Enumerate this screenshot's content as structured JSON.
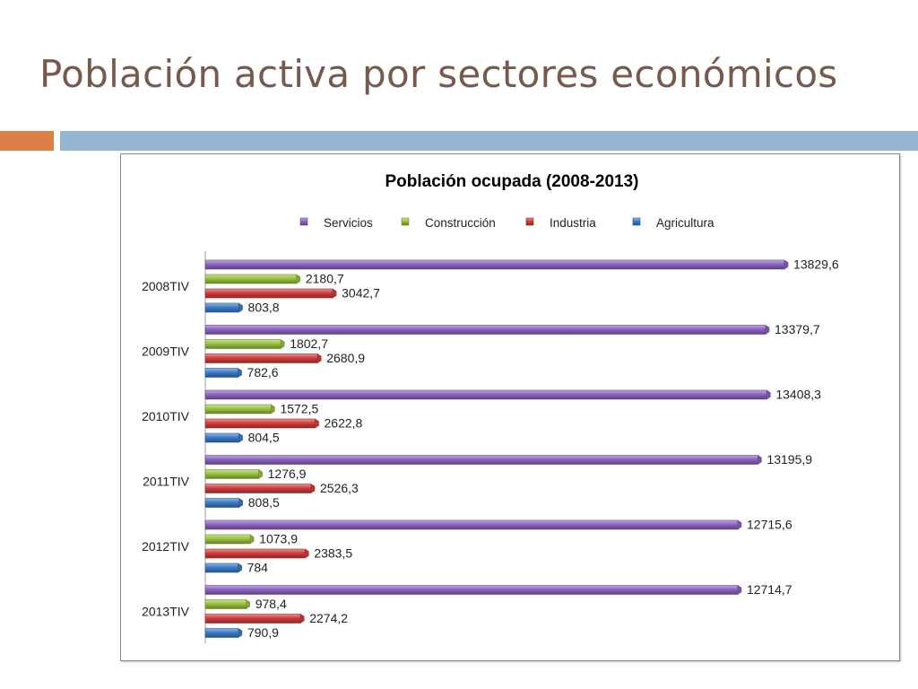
{
  "slide": {
    "title": "Población activa por sectores económicos"
  },
  "colors": {
    "title": "#765a4d",
    "accent_orange": "#dd8047",
    "accent_blue": "#94b6d2"
  },
  "chart_data": {
    "type": "bar",
    "orientation": "horizontal",
    "title": "Población ocupada (2008-2013)",
    "categories": [
      "2008TIV",
      "2009TIV",
      "2010TIV",
      "2011TIV",
      "2012TIV",
      "2013TIV"
    ],
    "series": [
      {
        "name": "Servicios",
        "color": "#8d64c4",
        "values": [
          13829.6,
          13379.7,
          13408.3,
          13195.9,
          12715.6,
          12714.7
        ],
        "labels": [
          "13829,6",
          "13379,7",
          "13408,3",
          "13195,9",
          "12715,6",
          "12714,7"
        ]
      },
      {
        "name": "Construcción",
        "color": "#9bc43f",
        "values": [
          2180.7,
          1802.7,
          1572.5,
          1276.9,
          1073.9,
          978.4
        ],
        "labels": [
          "2180,7",
          "1802,7",
          "1572,5",
          "1276,9",
          "1073,9",
          "978,4"
        ]
      },
      {
        "name": "Industria",
        "color": "#d23d3d",
        "values": [
          3042.7,
          2680.9,
          2622.8,
          2526.3,
          2383.5,
          2274.2
        ],
        "labels": [
          "3042,7",
          "2680,9",
          "2622,8",
          "2526,3",
          "2383,5",
          "2274,2"
        ]
      },
      {
        "name": "Agricultura",
        "color": "#3c7ccb",
        "values": [
          803.8,
          782.6,
          804.5,
          808.5,
          784,
          790.9
        ],
        "labels": [
          "803,8",
          "782,6",
          "804,5",
          "808,5",
          "784",
          "790,9"
        ]
      }
    ],
    "xlim": [
      0,
      14000
    ],
    "grid": false,
    "legend_position": "top",
    "value_labels": true,
    "style": "3d-cylinder-bars"
  }
}
